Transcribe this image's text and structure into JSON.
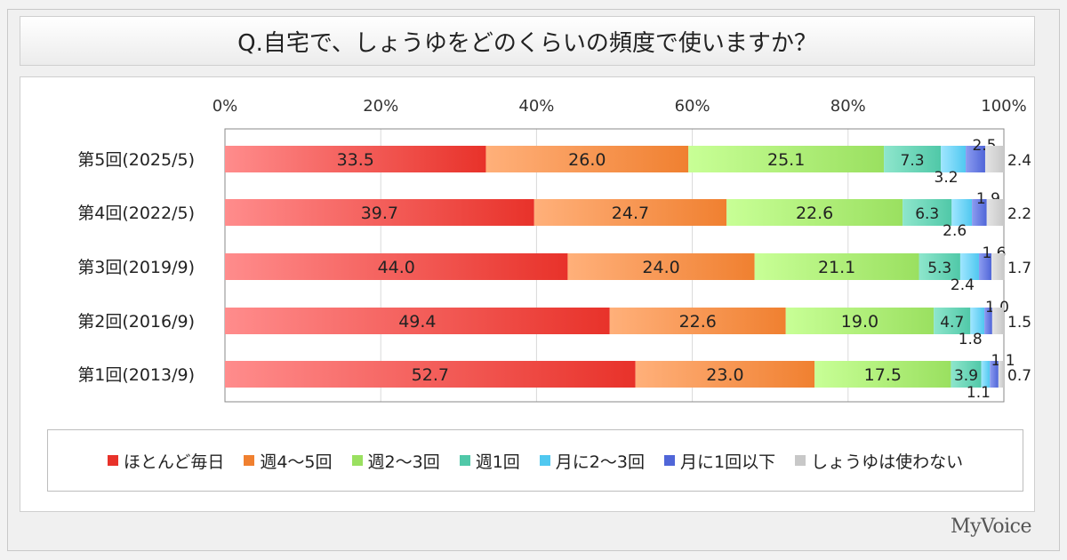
{
  "question": "Q.自宅で、しょうゆをどのくらいの頻度で使いますか？",
  "brand": "MyVoice",
  "colors": [
    "#e8322a",
    "#f08030",
    "#9ae060",
    "#50c8a8",
    "#50c8f0",
    "#5066d8",
    "#c8c8c8"
  ],
  "chart_data": {
    "type": "bar",
    "orientation": "horizontal",
    "stacked": true,
    "xlim": [
      0,
      100
    ],
    "x_ticks": [
      "0%",
      "20%",
      "40%",
      "60%",
      "80%",
      "100%"
    ],
    "categories": [
      "第5回(2025/5)",
      "第4回(2022/5)",
      "第3回(2019/9)",
      "第2回(2016/9)",
      "第1回(2013/9)"
    ],
    "series": [
      {
        "name": "ほとんど毎日",
        "values": [
          33.5,
          39.7,
          44.0,
          49.4,
          52.7
        ],
        "labels": [
          "33.5",
          "39.7",
          "44.0",
          "49.4",
          "52.7"
        ]
      },
      {
        "name": "週4～5回",
        "values": [
          26.0,
          24.7,
          24.0,
          22.6,
          23.0
        ],
        "labels": [
          "26.0",
          "24.7",
          "24.0",
          "22.6",
          "23.0"
        ]
      },
      {
        "name": "週2～3回",
        "values": [
          25.1,
          22.6,
          21.1,
          19.0,
          17.5
        ],
        "labels": [
          "25.1",
          "22.6",
          "21.1",
          "19.0",
          "17.5"
        ]
      },
      {
        "name": "週1回",
        "values": [
          7.3,
          6.3,
          5.3,
          4.7,
          3.9
        ],
        "labels": [
          "7.3",
          "6.3",
          "5.3",
          "4.7",
          "3.9"
        ]
      },
      {
        "name": "月に2～3回",
        "values": [
          3.2,
          2.6,
          2.4,
          1.8,
          1.1
        ],
        "labels": [
          "3.2",
          "2.6",
          "2.4",
          "1.8",
          "1.1"
        ]
      },
      {
        "name": "月に1回以下",
        "values": [
          2.5,
          1.9,
          1.6,
          1.0,
          1.1
        ],
        "labels": [
          "2.5",
          "1.9",
          "1.6",
          "1.0",
          "1.1"
        ]
      },
      {
        "name": "しょうゆは使わない",
        "values": [
          2.4,
          2.2,
          1.7,
          1.5,
          0.7
        ],
        "labels": [
          "2.4",
          "2.2",
          "1.7",
          "1.5",
          "0.7"
        ]
      }
    ],
    "legend_position": "bottom",
    "grid": true
  }
}
